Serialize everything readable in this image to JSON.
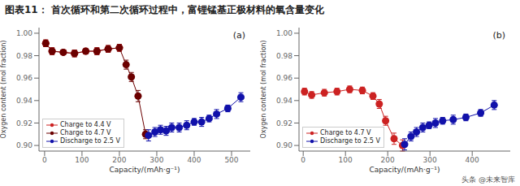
{
  "title": "图表11：  首次循环和第二次循环过程中，富锂锰基正极材料的氧含量变化",
  "annotations": [
    "头条 @未来智库"
  ],
  "chart_data": [
    {
      "type": "line",
      "marker": "circle",
      "line_style": "solid",
      "annotations": [
        "(a)"
      ],
      "x_label": "Capacity/(mAh·g⁻¹)",
      "y_label": "Oxygen content (mol fraction)",
      "xlim": [
        -15,
        550
      ],
      "ylim": [
        0.895,
        1.005
      ],
      "xticks": [
        0,
        100,
        200,
        300,
        400,
        500
      ],
      "yticks": [
        {
          "value": 0.9,
          "label": "0.90"
        },
        {
          "value": 0.92,
          "label": "0.92"
        },
        {
          "value": 0.94,
          "label": "0.94"
        },
        {
          "value": 0.96,
          "label": "0.96"
        },
        {
          "value": 0.98,
          "label": "0.98"
        },
        {
          "value": 1.0,
          "label": "1.00"
        }
      ],
      "grid": false,
      "legend": "lower left",
      "series": [
        {
          "name": "Charge to 4.4 V",
          "color": "#CC2222",
          "x": [
            3,
            20,
            50,
            80,
            110,
            140,
            170,
            200
          ],
          "values": [
            0.991,
            0.984,
            0.983,
            0.982,
            0.984,
            0.984,
            0.986,
            0.987
          ],
          "error": [
            0.003,
            0.003,
            0.002,
            0.003,
            0.002,
            0.003,
            0.003,
            0.003
          ]
        },
        {
          "name": "Charge to 4.7 V",
          "color": "#6B0000",
          "x": [
            3,
            20,
            50,
            80,
            110,
            140,
            170,
            200,
            218,
            232,
            250,
            270
          ],
          "values": [
            0.991,
            0.984,
            0.983,
            0.982,
            0.984,
            0.984,
            0.986,
            0.987,
            0.972,
            0.961,
            0.944,
            0.91
          ],
          "error": [
            0.003,
            0.003,
            0.002,
            0.003,
            0.002,
            0.003,
            0.003,
            0.003,
            0.004,
            0.004,
            0.005,
            0.004
          ]
        },
        {
          "name": "Discharge to 2.5 V",
          "color": "#1111AA",
          "x": [
            278,
            295,
            310,
            325,
            340,
            360,
            380,
            400,
            420,
            440,
            460,
            490,
            525
          ],
          "values": [
            0.909,
            0.912,
            0.914,
            0.913,
            0.916,
            0.916,
            0.918,
            0.921,
            0.921,
            0.924,
            0.928,
            0.933,
            0.943
          ],
          "error": [
            0.005,
            0.004,
            0.004,
            0.004,
            0.004,
            0.004,
            0.004,
            0.003,
            0.004,
            0.003,
            0.004,
            0.003,
            0.004
          ]
        }
      ]
    },
    {
      "type": "line",
      "marker": "circle",
      "line_style": "solid",
      "annotations": [
        "(b)"
      ],
      "x_label": "Capacity/(mAh·g⁻¹)",
      "y_label": "Oxygen content (mol fraction)",
      "xlim": [
        -10,
        490
      ],
      "ylim": [
        0.895,
        1.005
      ],
      "xticks": [
        0,
        100,
        200,
        300,
        400
      ],
      "yticks": [
        {
          "value": 0.9,
          "label": "0.90"
        },
        {
          "value": 0.92,
          "label": "0.92"
        },
        {
          "value": 0.94,
          "label": "0.94"
        },
        {
          "value": 0.96,
          "label": "0.96"
        },
        {
          "value": 0.98,
          "label": "0.98"
        },
        {
          "value": 1.0,
          "label": "1.00"
        }
      ],
      "grid": false,
      "legend": "lower left",
      "series": [
        {
          "name": "Charge to 4.7 V",
          "color": "#CC2222",
          "x": [
            3,
            20,
            50,
            80,
            110,
            140,
            165,
            180,
            195,
            215,
            235
          ],
          "values": [
            0.948,
            0.945,
            0.947,
            0.948,
            0.95,
            0.949,
            0.944,
            0.937,
            0.922,
            0.906,
            0.9
          ],
          "error": [
            0.003,
            0.003,
            0.003,
            0.003,
            0.003,
            0.003,
            0.003,
            0.004,
            0.004,
            0.005,
            0.005
          ]
        },
        {
          "name": "Discharge to 2.5 V",
          "color": "#1111AA",
          "x": [
            240,
            255,
            268,
            283,
            298,
            313,
            330,
            355,
            385,
            420,
            452
          ],
          "values": [
            0.901,
            0.908,
            0.912,
            0.916,
            0.918,
            0.92,
            0.922,
            0.923,
            0.925,
            0.929,
            0.936
          ],
          "error": [
            0.005,
            0.004,
            0.004,
            0.004,
            0.003,
            0.004,
            0.003,
            0.004,
            0.003,
            0.003,
            0.004
          ]
        }
      ]
    }
  ]
}
